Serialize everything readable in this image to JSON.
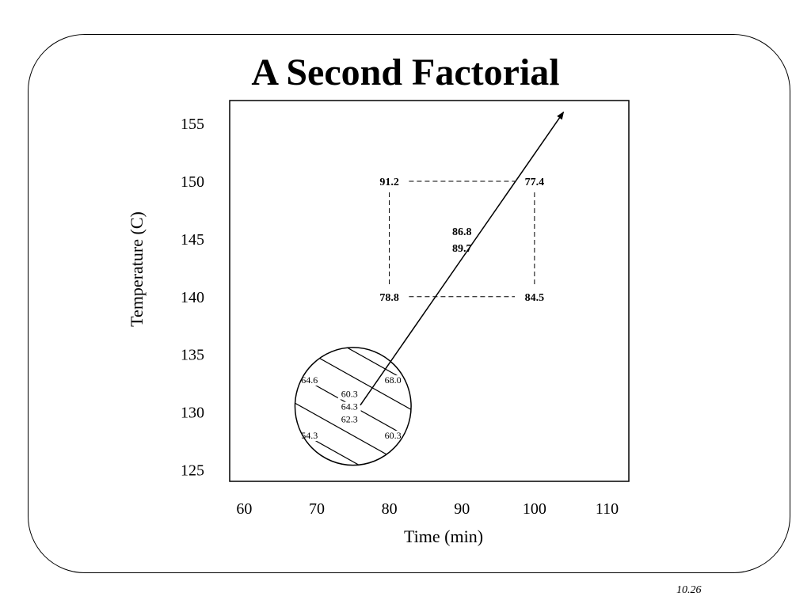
{
  "slide": {
    "title": "A Second Factorial",
    "page_number": "10.26"
  },
  "chart_data": {
    "type": "scatter",
    "title": "A Second Factorial",
    "xlabel": "Time (min)",
    "ylabel": "Temperature (C)",
    "xlim": [
      58,
      113
    ],
    "ylim": [
      124,
      157
    ],
    "x_ticks": [
      60,
      70,
      80,
      90,
      100,
      110
    ],
    "y_ticks": [
      125,
      130,
      135,
      140,
      145,
      150,
      155
    ],
    "grid": false,
    "factorial_points": [
      {
        "x": 80,
        "y": 150,
        "label": "91.2"
      },
      {
        "x": 100,
        "y": 150,
        "label": "77.4"
      },
      {
        "x": 80,
        "y": 140,
        "label": "78.8"
      },
      {
        "x": 100,
        "y": 140,
        "label": "84.5"
      }
    ],
    "center_point": {
      "x": 90,
      "y": 145,
      "labels": [
        "86.8",
        "89.7"
      ]
    },
    "first_design": {
      "center": {
        "x": 75,
        "y": 130.5
      },
      "radius_x": 8,
      "radius_y": 5.1,
      "labels": [
        {
          "x": 69,
          "y": 132.5,
          "label": "64.6"
        },
        {
          "x": 80.5,
          "y": 132.5,
          "label": "68.0"
        },
        {
          "x": 74.5,
          "y": 131.3,
          "label": "60.3"
        },
        {
          "x": 74.5,
          "y": 130.2,
          "label": "64.3"
        },
        {
          "x": 74.5,
          "y": 129.1,
          "label": "62.3"
        },
        {
          "x": 69,
          "y": 127.7,
          "label": "54.3"
        },
        {
          "x": 80.5,
          "y": 127.7,
          "label": "60.3"
        }
      ]
    },
    "steepest_ascent_path": {
      "from": {
        "x": 76,
        "y": 130.6
      },
      "to": {
        "x": 104,
        "y": 156
      }
    }
  }
}
